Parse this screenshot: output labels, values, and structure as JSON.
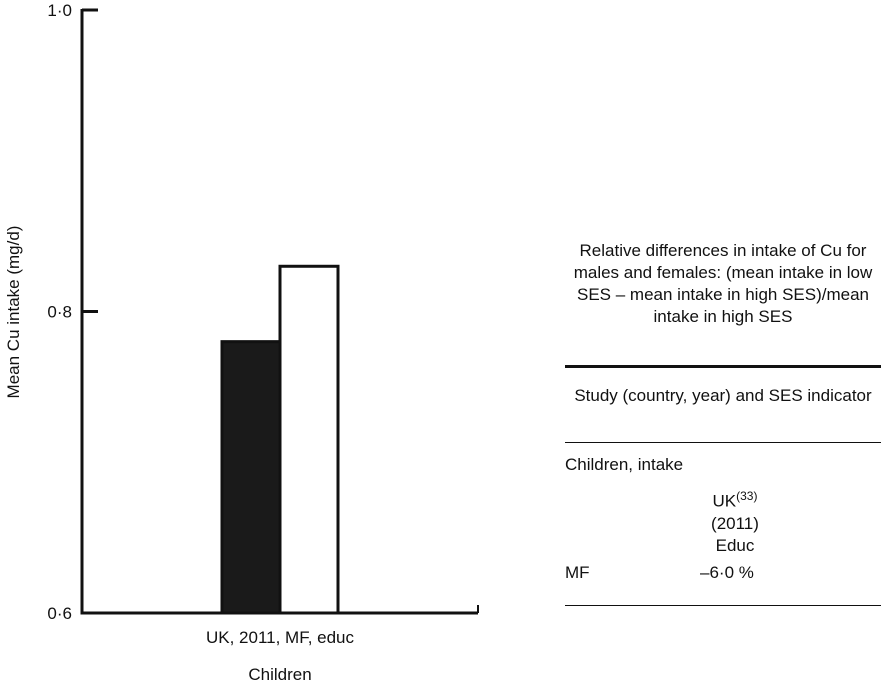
{
  "chart_data": {
    "type": "bar",
    "categories": [
      "UK, 2011, MF, educ"
    ],
    "series": [
      {
        "values": [
          0.78
        ],
        "fill": "#1a1a1a"
      },
      {
        "values": [
          0.83
        ],
        "fill": "#ffffff"
      }
    ],
    "ylabel": "Mean Cu intake (mg/d)",
    "xlabel": "Children",
    "ylim": [
      0.6,
      1.0
    ],
    "yticks": [
      0.6,
      0.8,
      1.0
    ],
    "ytick_labels": [
      "0·6",
      "0·8",
      "1·0"
    ],
    "grid": false
  },
  "table": {
    "heading": "Relative differences in intake of Cu for males and females: (mean intake in low SES – mean intake in high SES)/mean intake in high SES",
    "subheading": "Study (country, year) and SES indicator",
    "section": "Children, intake",
    "study_name": "UK",
    "study_ref": "(33)",
    "study_year": "(2011)",
    "study_indicator": "Educ",
    "row_label": "MF",
    "row_value": "–6·0 %"
  }
}
